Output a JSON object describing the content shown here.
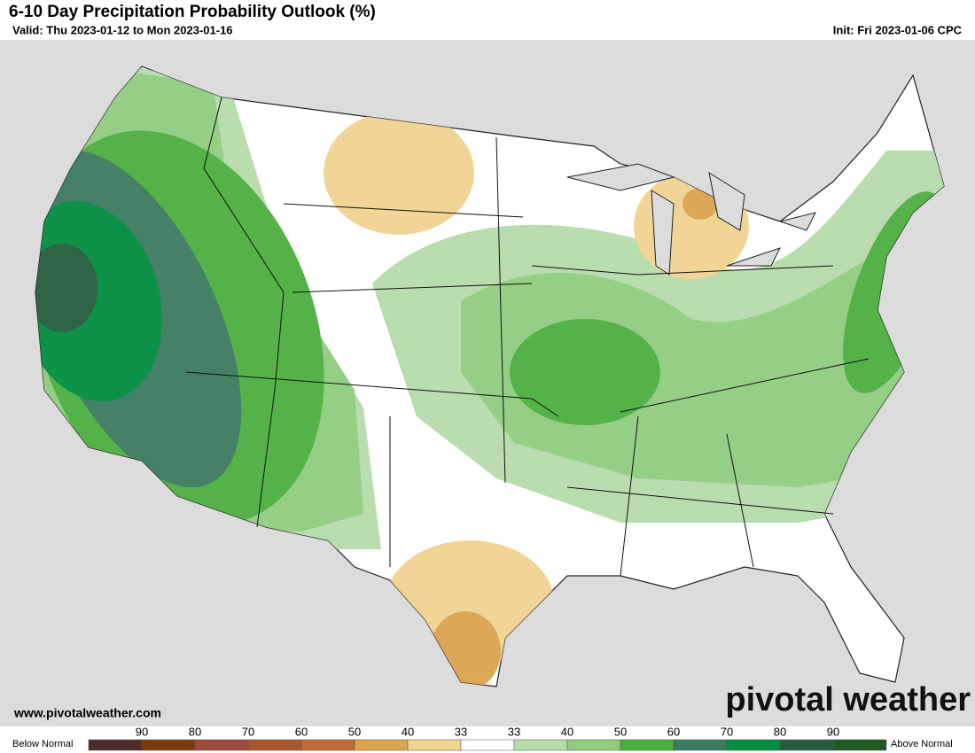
{
  "header": {
    "title": "6-10 Day Precipitation Probability Outlook (%)",
    "valid": "Valid: Thu 2023-01-12 to Mon 2023-01-16",
    "init": "Init: Fri 2023-01-06 CPC"
  },
  "map": {
    "website": "www.pivotalweather.com",
    "logo": "pivotal weather"
  },
  "legend": {
    "below": "Below Normal",
    "above": "Above Normal",
    "labels": [
      90,
      80,
      70,
      60,
      50,
      40,
      33,
      33,
      40,
      50,
      60,
      70,
      80,
      90
    ],
    "colors": [
      "#4e2c2c",
      "#7a3b0c",
      "#9b4a3d",
      "#a9562d",
      "#c0693a",
      "#dba44e",
      "#f1d392",
      "#ffffff",
      "#b6dcab",
      "#90cc7f",
      "#4bae40",
      "#3b7b5e",
      "#008d3f",
      "#245d3d",
      "#1f5a1f"
    ]
  }
}
